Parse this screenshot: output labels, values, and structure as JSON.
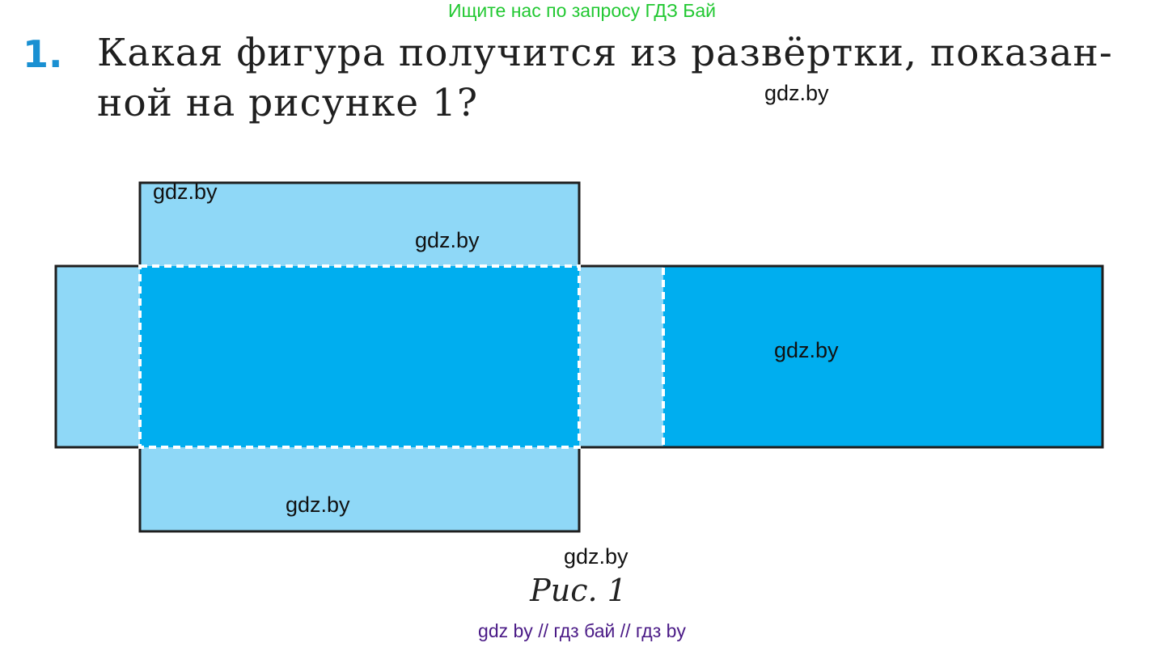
{
  "banner": "Ищите нас по запросу ГДЗ Бай",
  "question": {
    "number": "1.",
    "line1": "Какая фигура получится из развёртки, показан-",
    "line2": "ной на рисунке 1?"
  },
  "figure": {
    "caption": "Рис. 1",
    "colors": {
      "face_dark": "#00aeef",
      "face_light": "#8fd8f7",
      "outline": "#1e1e1e",
      "fold_line": "#ffffff"
    }
  },
  "watermarks": [
    "gdz.by",
    "gdz.by",
    "gdz.by",
    "gdz.by",
    "gdz.by",
    "gdz.by"
  ],
  "footer": "gdz by  //  гдз бай  //  гдз by"
}
